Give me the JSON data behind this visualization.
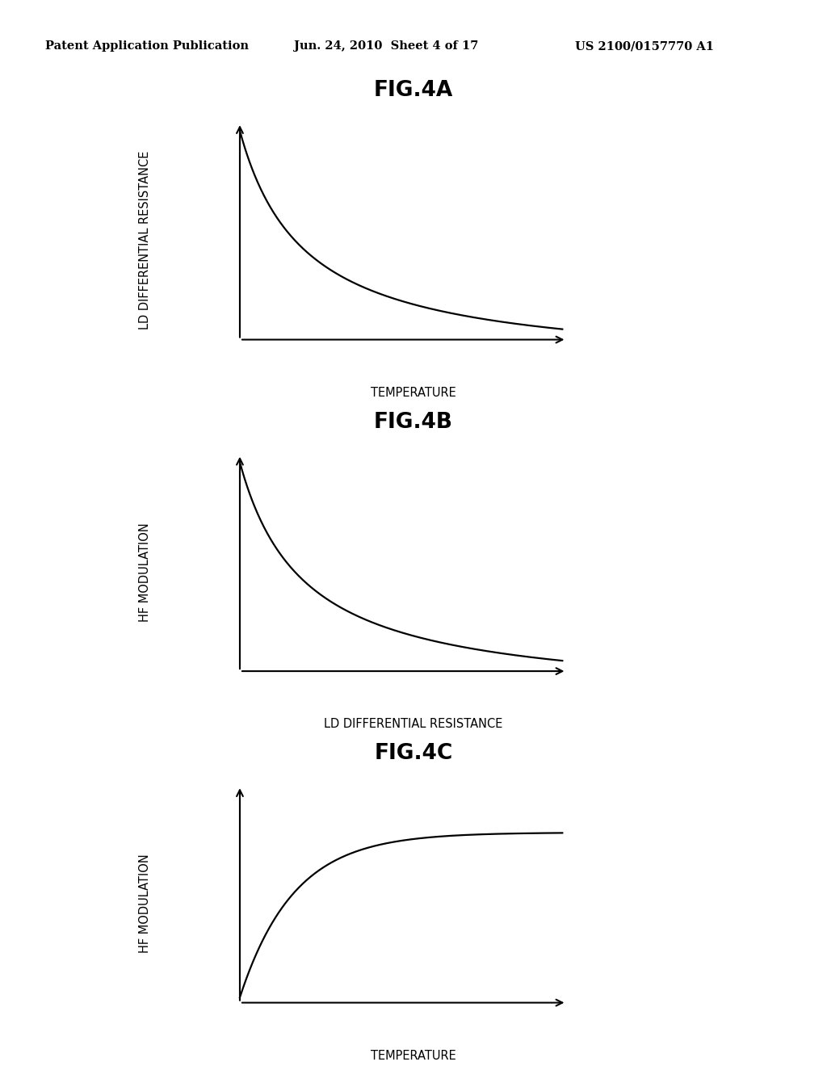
{
  "header_left": "Patent Application Publication",
  "header_center": "Jun. 24, 2010  Sheet 4 of 17",
  "header_right": "US 2100/0157770 A1",
  "fig4a_title": "FIG.4A",
  "fig4a_ylabel": "LD DIFFERENTIAL RESISTANCE",
  "fig4a_xlabel": "TEMPERATURE",
  "fig4b_title": "FIG.4B",
  "fig4b_ylabel": "HF MODULATION",
  "fig4b_xlabel": "LD DIFFERENTIAL RESISTANCE",
  "fig4c_title": "FIG.4C",
  "fig4c_ylabel": "HF MODULATION",
  "fig4c_xlabel": "TEMPERATURE",
  "bg_color": "#ffffff",
  "line_color": "#000000",
  "text_color": "#000000",
  "header_fontsize": 10.5,
  "title_fontsize": 19,
  "label_fontsize": 10.5
}
